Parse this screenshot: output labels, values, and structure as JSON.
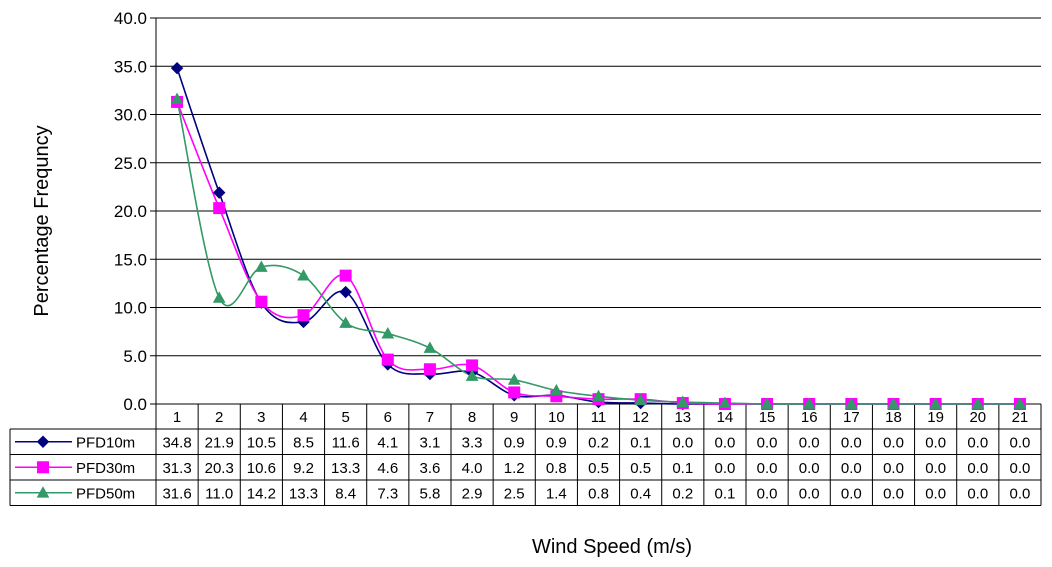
{
  "chart_data": {
    "type": "line",
    "title": "",
    "xlabel": "Wind Speed (m/s)",
    "ylabel": "Percentage Frequncy",
    "ylim": [
      0,
      40
    ],
    "yticks": [
      "0.0",
      "5.0",
      "10.0",
      "15.0",
      "20.0",
      "25.0",
      "30.0",
      "35.0",
      "40.0"
    ],
    "categories": [
      "1",
      "2",
      "3",
      "4",
      "5",
      "6",
      "7",
      "8",
      "9",
      "10",
      "11",
      "12",
      "13",
      "14",
      "15",
      "16",
      "17",
      "18",
      "19",
      "20",
      "21"
    ],
    "grid": "horizontal",
    "legend": "data-table",
    "series": [
      {
        "name": "PFD10m",
        "color": "#000080",
        "marker": "diamond",
        "values": [
          34.8,
          21.9,
          10.5,
          8.5,
          11.6,
          4.1,
          3.1,
          3.3,
          0.9,
          0.9,
          0.2,
          0.1,
          0.0,
          0.0,
          0.0,
          0.0,
          0.0,
          0.0,
          0.0,
          0.0,
          0.0
        ]
      },
      {
        "name": "PFD30m",
        "color": "#FF00FF",
        "marker": "square",
        "values": [
          31.3,
          20.3,
          10.6,
          9.2,
          13.3,
          4.6,
          3.6,
          4.0,
          1.2,
          0.8,
          0.5,
          0.5,
          0.1,
          0.0,
          0.0,
          0.0,
          0.0,
          0.0,
          0.0,
          0.0,
          0.0
        ]
      },
      {
        "name": "PFD50m",
        "color": "#339966",
        "marker": "triangle",
        "values": [
          31.6,
          11.0,
          14.2,
          13.3,
          8.4,
          7.3,
          5.8,
          2.9,
          2.5,
          1.4,
          0.8,
          0.4,
          0.2,
          0.1,
          0.0,
          0.0,
          0.0,
          0.0,
          0.0,
          0.0,
          0.0
        ]
      }
    ]
  }
}
